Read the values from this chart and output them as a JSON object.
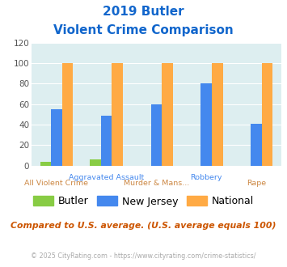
{
  "title_line1": "2019 Butler",
  "title_line2": "Violent Crime Comparison",
  "series": {
    "Butler": [
      4,
      6,
      0,
      0,
      0
    ],
    "New Jersey": [
      55,
      49,
      60,
      80,
      41
    ],
    "National": [
      100,
      100,
      100,
      100,
      100
    ]
  },
  "colors": {
    "Butler": "#88cc44",
    "New Jersey": "#4488ee",
    "National": "#ffaa44"
  },
  "ylim": [
    0,
    120
  ],
  "yticks": [
    0,
    20,
    40,
    60,
    80,
    100,
    120
  ],
  "plot_bg": "#ddeef0",
  "title_color": "#1166cc",
  "x_top_labels": [
    "",
    "Aggravated Assault",
    "",
    "Robbery",
    ""
  ],
  "x_bot_labels": [
    "All Violent Crime",
    "",
    "Murder & Mans...",
    "",
    "Rape"
  ],
  "x_top_color": "#4488ee",
  "x_bot_color": "#cc8844",
  "legend_labels": [
    "Butler",
    "New Jersey",
    "National"
  ],
  "note_text": "Compared to U.S. average. (U.S. average equals 100)",
  "note_color": "#cc5500",
  "footer_text": "© 2025 CityRating.com - https://www.cityrating.com/crime-statistics/",
  "footer_color": "#aaaaaa"
}
